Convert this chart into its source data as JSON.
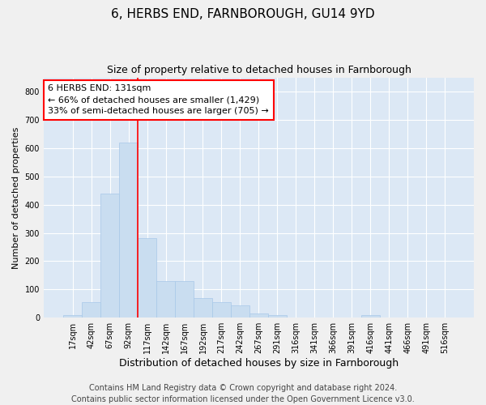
{
  "title": "6, HERBS END, FARNBOROUGH, GU14 9YD",
  "subtitle": "Size of property relative to detached houses in Farnborough",
  "xlabel": "Distribution of detached houses by size in Farnborough",
  "ylabel": "Number of detached properties",
  "bar_color": "#c9ddf0",
  "bar_edgecolor": "#a8c8e8",
  "bg_color": "#dce8f5",
  "fig_color": "#f0f0f0",
  "grid_color": "#ffffff",
  "categories": [
    "17sqm",
    "42sqm",
    "67sqm",
    "92sqm",
    "117sqm",
    "142sqm",
    "167sqm",
    "192sqm",
    "217sqm",
    "242sqm",
    "267sqm",
    "291sqm",
    "316sqm",
    "341sqm",
    "366sqm",
    "391sqm",
    "416sqm",
    "441sqm",
    "466sqm",
    "491sqm",
    "516sqm"
  ],
  "values": [
    10,
    55,
    440,
    620,
    280,
    130,
    130,
    70,
    55,
    45,
    15,
    10,
    0,
    0,
    0,
    0,
    10,
    0,
    0,
    0,
    0
  ],
  "ylim": [
    0,
    850
  ],
  "yticks": [
    0,
    100,
    200,
    300,
    400,
    500,
    600,
    700,
    800
  ],
  "vline_x": 3.5,
  "ann_line1": "6 HERBS END: 131sqm",
  "ann_line2": "← 66% of detached houses are smaller (1,429)",
  "ann_line3": "33% of semi-detached houses are larger (705) →",
  "footer_line1": "Contains HM Land Registry data © Crown copyright and database right 2024.",
  "footer_line2": "Contains public sector information licensed under the Open Government Licence v3.0.",
  "title_fontsize": 11,
  "subtitle_fontsize": 9,
  "tick_fontsize": 7,
  "ylabel_fontsize": 8,
  "xlabel_fontsize": 9,
  "annotation_fontsize": 8,
  "footer_fontsize": 7
}
